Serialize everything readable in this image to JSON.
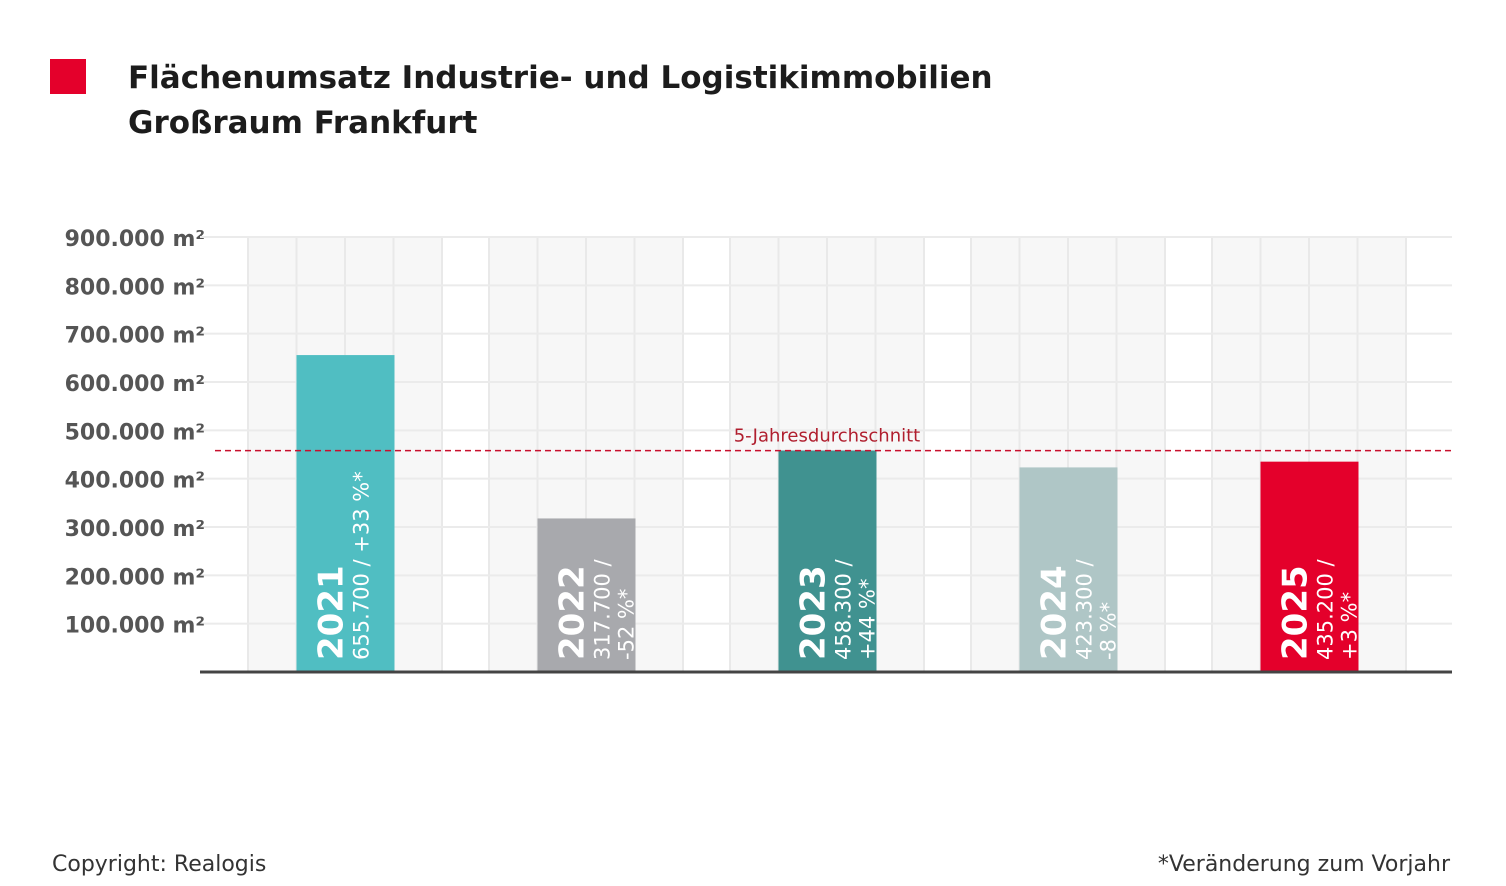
{
  "title_line1": "Flächenumsatz Industrie- und Logistikimmobilien",
  "title_line2": "Großraum Frankfurt",
  "copyright": "Copyright: Realogis",
  "footnote": "*Veränderung zum Vorjahr",
  "colors": {
    "accent": "#e4002b"
  },
  "chart_data": {
    "type": "bar",
    "unit": "m²",
    "categories": [
      "2021",
      "2022",
      "2023",
      "2024",
      "2025"
    ],
    "values": [
      655700,
      317700,
      458300,
      423300,
      435200
    ],
    "bar_labels": [
      [
        "655.700 / +33 %*"
      ],
      [
        "317.700 /",
        "-52 %*"
      ],
      [
        "458.300 /",
        "+44 %*"
      ],
      [
        "423.300 /",
        "-8 %*"
      ],
      [
        "435.200 /",
        "+3 %*"
      ]
    ],
    "bar_colors": [
      "#50bec2",
      "#a8a9ad",
      "#409290",
      "#afc6c6",
      "#e4002b"
    ],
    "ylim": [
      0,
      900000
    ],
    "yticks": [
      100000,
      200000,
      300000,
      400000,
      500000,
      600000,
      700000,
      800000,
      900000
    ],
    "ytick_labels": [
      "100.000 m²",
      "200.000 m²",
      "300.000 m²",
      "400.000 m²",
      "500.000 m²",
      "600.000 m²",
      "700.000 m²",
      "800.000 m²",
      "900.000 m²"
    ],
    "reference_line": {
      "label": "5-Jahresdurchschnitt",
      "value": 458000,
      "color": "#c8102e"
    },
    "grid": true
  }
}
